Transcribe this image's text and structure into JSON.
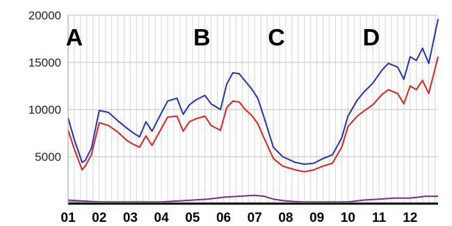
{
  "chart_data": {
    "type": "line",
    "title": "",
    "xlabel": "",
    "ylabel": "",
    "ylim": [
      0,
      20000
    ],
    "yticks": [
      5000,
      10000,
      15000,
      20000
    ],
    "xlim": [
      0,
      11.9
    ],
    "xticks": [
      "01",
      "02",
      "03",
      "04",
      "05",
      "06",
      "07",
      "08",
      "09",
      "10",
      "11",
      "12"
    ],
    "grid": true,
    "legend": "none",
    "annotations": [
      {
        "label": "A",
        "x": 0.2,
        "y": 16800
      },
      {
        "label": "B",
        "x": 4.3,
        "y": 16800
      },
      {
        "label": "C",
        "x": 6.7,
        "y": 16800
      },
      {
        "label": "D",
        "x": 9.75,
        "y": 16800
      }
    ],
    "series": [
      {
        "color": "#1f2fbf",
        "x": [
          0,
          0.2,
          0.45,
          0.55,
          0.75,
          1,
          1.3,
          1.6,
          1.9,
          2.1,
          2.3,
          2.5,
          2.7,
          2.9,
          3.2,
          3.5,
          3.7,
          3.9,
          4.1,
          4.4,
          4.6,
          4.9,
          5.1,
          5.3,
          5.5,
          5.7,
          5.9,
          6.1,
          6.3,
          6.6,
          6.9,
          7.3,
          7.6,
          7.9,
          8.2,
          8.5,
          8.8,
          9.0,
          9.3,
          9.5,
          9.8,
          10.1,
          10.3,
          10.6,
          10.8,
          11.0,
          11.2,
          11.4,
          11.6,
          11.9
        ],
        "y": [
          9100,
          6800,
          4400,
          4600,
          5900,
          9900,
          9700,
          8800,
          8000,
          7500,
          7100,
          8700,
          7700,
          9000,
          10900,
          11200,
          9500,
          10500,
          11000,
          11500,
          10600,
          10000,
          12700,
          13900,
          13800,
          13000,
          12200,
          11200,
          9200,
          6000,
          5000,
          4400,
          4200,
          4300,
          4800,
          5200,
          7000,
          9300,
          11000,
          11800,
          12800,
          14200,
          14900,
          14500,
          13200,
          15600,
          15200,
          16500,
          14900,
          19600
        ]
      },
      {
        "color": "#e02020",
        "x": [
          0,
          0.2,
          0.45,
          0.55,
          0.75,
          1,
          1.3,
          1.6,
          1.9,
          2.1,
          2.3,
          2.5,
          2.7,
          2.9,
          3.2,
          3.5,
          3.7,
          3.9,
          4.1,
          4.4,
          4.6,
          4.9,
          5.1,
          5.3,
          5.5,
          5.7,
          5.9,
          6.1,
          6.3,
          6.6,
          6.9,
          7.3,
          7.6,
          7.9,
          8.2,
          8.5,
          8.8,
          9.0,
          9.3,
          9.5,
          9.8,
          10.1,
          10.3,
          10.6,
          10.8,
          11.0,
          11.2,
          11.4,
          11.6,
          11.9
        ],
        "y": [
          7800,
          5800,
          3600,
          4000,
          5200,
          8600,
          8300,
          7600,
          6700,
          6300,
          6000,
          7200,
          6200,
          7400,
          9200,
          9300,
          7700,
          8700,
          9000,
          9300,
          8300,
          7800,
          10200,
          10900,
          10800,
          10000,
          9400,
          8500,
          7000,
          4800,
          4000,
          3600,
          3400,
          3600,
          4000,
          4300,
          6000,
          8200,
          9300,
          9800,
          10500,
          11600,
          12100,
          11700,
          10600,
          12500,
          12100,
          13100,
          11700,
          15600
        ]
      },
      {
        "color": "#7b2a8a",
        "x": [
          0,
          1,
          2,
          3,
          4,
          4.5,
          5,
          5.5,
          6,
          6.3,
          6.6,
          7,
          7.5,
          8,
          8.5,
          9,
          9.5,
          10,
          10.5,
          11,
          11.5,
          11.9
        ],
        "y": [
          400,
          200,
          200,
          200,
          400,
          500,
          700,
          800,
          900,
          800,
          500,
          300,
          200,
          200,
          200,
          200,
          400,
          500,
          600,
          600,
          800,
          800
        ]
      },
      {
        "color": "#888888",
        "x": [
          0,
          1,
          2,
          3,
          4,
          5,
          6,
          7,
          8,
          9,
          10,
          11,
          11.9
        ],
        "y": [
          200,
          100,
          100,
          100,
          100,
          100,
          100,
          100,
          100,
          100,
          100,
          100,
          100
        ]
      },
      {
        "color": "#2e9a2e",
        "x": [
          0,
          1,
          2,
          3,
          4,
          5,
          6,
          7,
          8,
          9,
          10,
          11,
          11.9
        ],
        "y": [
          50,
          50,
          50,
          50,
          50,
          50,
          50,
          50,
          50,
          50,
          50,
          50,
          50
        ]
      }
    ]
  }
}
